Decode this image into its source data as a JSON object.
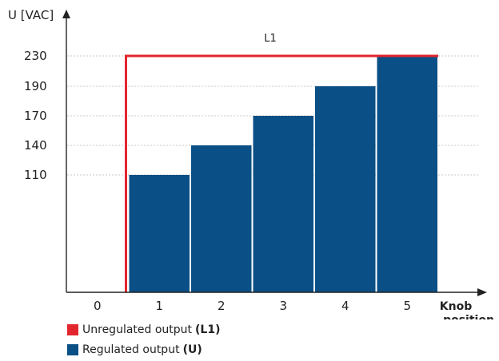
{
  "chart_data": {
    "type": "bar",
    "ylabel": "U [VAC]",
    "xlabel_line1": "Knob",
    "xlabel_line2": "position",
    "categories": [
      "0",
      "1",
      "2",
      "3",
      "4",
      "5"
    ],
    "ytick_labels": [
      "110",
      "140",
      "170",
      "190",
      "230"
    ],
    "ytick_values": [
      110,
      140,
      170,
      190,
      230
    ],
    "series": [
      {
        "name": "Regulated output (U)",
        "values": [
          0,
          110,
          140,
          170,
          190,
          230
        ]
      },
      {
        "name": "Unregulated output (L1)",
        "values": [
          0,
          230,
          230,
          230,
          230,
          230
        ]
      }
    ],
    "annotation": "L1",
    "grid": "dotted horizontal at ticks"
  },
  "legend": {
    "items": [
      {
        "label": "Unregulated output ",
        "bold": "(L1)",
        "color": "#e3262e"
      },
      {
        "label": "Regulated output ",
        "bold": "(U)",
        "color": "#0a4f85"
      }
    ]
  },
  "colors": {
    "bar": "#0a4f85",
    "line": "#e3262e",
    "axis": "#222222",
    "grid": "#c8c8c8"
  }
}
